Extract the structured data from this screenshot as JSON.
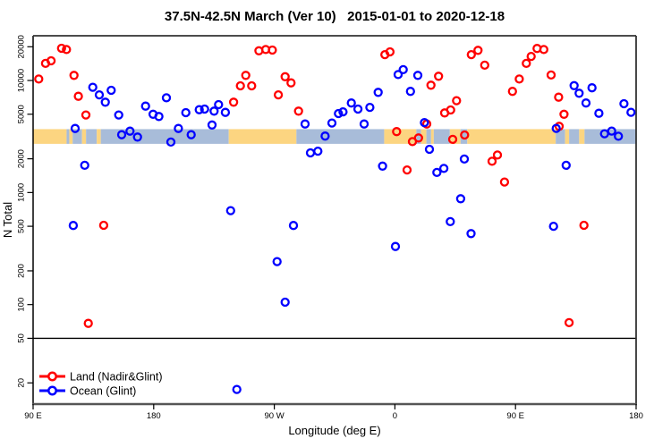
{
  "title": "37.5N-42.5N March (Ver 10)   2015-01-01 to 2020-12-18",
  "chart_data": {
    "type": "scatter",
    "title": "37.5N-42.5N March (Ver 10)   2015-01-01 to 2020-12-18",
    "xlabel": "Longitude (deg E)",
    "ylabel": "N Total",
    "x_axis": {
      "note": "continuous longitude axis starting at 90E wrapping eastward to 180",
      "domain": [
        90,
        540
      ],
      "ticks": [
        {
          "v": 90,
          "label": "90 E"
        },
        {
          "v": 180,
          "label": "180"
        },
        {
          "v": 270,
          "label": "90 W"
        },
        {
          "v": 360,
          "label": "0"
        },
        {
          "v": 450,
          "label": "90 E"
        },
        {
          "v": 540,
          "label": "180"
        }
      ]
    },
    "y_axis": {
      "scale": "log",
      "domain": [
        15,
        25000
      ],
      "ticks": [
        20000,
        10000,
        5000,
        2000,
        1000,
        500,
        200,
        100,
        50,
        20
      ]
    },
    "hline_value": 50,
    "surface_band": {
      "value_range": [
        2720,
        3680
      ],
      "land_color": "#FCD581",
      "ocean_color": "#A8BCD9",
      "segments": [
        {
          "from": 90,
          "to": 115,
          "type": "land"
        },
        {
          "from": 115,
          "to": 117,
          "type": "ocean"
        },
        {
          "from": 117,
          "to": 119.5,
          "type": "land"
        },
        {
          "from": 119.5,
          "to": 126.5,
          "type": "ocean"
        },
        {
          "from": 126.5,
          "to": 129.5,
          "type": "land"
        },
        {
          "from": 129.5,
          "to": 137.5,
          "type": "ocean"
        },
        {
          "from": 137.5,
          "to": 140.5,
          "type": "land"
        },
        {
          "from": 140.5,
          "to": 236,
          "type": "ocean"
        },
        {
          "from": 236,
          "to": 286.5,
          "type": "land"
        },
        {
          "from": 286.5,
          "to": 352,
          "type": "ocean"
        },
        {
          "from": 352,
          "to": 376,
          "type": "land"
        },
        {
          "from": 376,
          "to": 379.5,
          "type": "ocean"
        },
        {
          "from": 379.5,
          "to": 383.5,
          "type": "land"
        },
        {
          "from": 383.5,
          "to": 387,
          "type": "ocean"
        },
        {
          "from": 387,
          "to": 389,
          "type": "land"
        },
        {
          "from": 389,
          "to": 401,
          "type": "ocean"
        },
        {
          "from": 401,
          "to": 409,
          "type": "land"
        },
        {
          "from": 409,
          "to": 414,
          "type": "ocean"
        },
        {
          "from": 414,
          "to": 480,
          "type": "land"
        },
        {
          "from": 480,
          "to": 487,
          "type": "ocean"
        },
        {
          "from": 487,
          "to": 490,
          "type": "land"
        },
        {
          "from": 490,
          "to": 497.5,
          "type": "ocean"
        },
        {
          "from": 497.5,
          "to": 501.5,
          "type": "land"
        },
        {
          "from": 501.5,
          "to": 540,
          "type": "ocean"
        }
      ]
    },
    "series": [
      {
        "name": "Land (Nadir&Glint)",
        "color": "#FF0000",
        "points": [
          [
            111.2,
            19400
          ],
          [
            114.9,
            18900
          ],
          [
            103.4,
            15000
          ],
          [
            99.3,
            14200
          ],
          [
            94.2,
            10300
          ],
          [
            120.5,
            11100
          ],
          [
            123.8,
            7230
          ],
          [
            129.4,
            4920
          ],
          [
            239.6,
            6400
          ],
          [
            244.7,
            8960
          ],
          [
            248.7,
            11100
          ],
          [
            253.1,
            8960
          ],
          [
            258.5,
            18400
          ],
          [
            263.6,
            18900
          ],
          [
            268.5,
            18700
          ],
          [
            273.0,
            7450
          ],
          [
            278.1,
            10800
          ],
          [
            282.5,
            9520
          ],
          [
            288.1,
            5330
          ],
          [
            352.5,
            17000
          ],
          [
            356.3,
            18000
          ],
          [
            361.3,
            3500
          ],
          [
            369.1,
            1590
          ],
          [
            373.1,
            2850
          ],
          [
            377.6,
            3070
          ],
          [
            383.8,
            4090
          ],
          [
            386.9,
            9080
          ],
          [
            392.6,
            10900
          ],
          [
            397.1,
            5140
          ],
          [
            401.6,
            5460
          ],
          [
            403.1,
            2980
          ],
          [
            406.0,
            6600
          ],
          [
            412.0,
            3260
          ],
          [
            417.0,
            17000
          ],
          [
            422.0,
            18600
          ],
          [
            427.0,
            13700
          ],
          [
            432.5,
            1900
          ],
          [
            436.5,
            2160
          ],
          [
            441.8,
            1240
          ],
          [
            447.7,
            8000
          ],
          [
            452.8,
            10300
          ],
          [
            458.1,
            14200
          ],
          [
            461.7,
            16400
          ],
          [
            466.1,
            19300
          ],
          [
            471.1,
            18900
          ],
          [
            476.6,
            11200
          ],
          [
            482.2,
            7100
          ],
          [
            482.6,
            3900
          ],
          [
            486.2,
            5000
          ],
          [
            490.0,
            69
          ],
          [
            501.1,
            510
          ],
          [
            131.2,
            68
          ],
          [
            142.7,
            510
          ]
        ]
      },
      {
        "name": "Ocean (Glint)",
        "color": "#0000FF",
        "points": [
          [
            120.0,
            508
          ],
          [
            121.4,
            3730
          ],
          [
            128.5,
            1750
          ],
          [
            134.5,
            8700
          ],
          [
            139.4,
            7450
          ],
          [
            143.9,
            6400
          ],
          [
            148.3,
            8170
          ],
          [
            153.9,
            4920
          ],
          [
            156.1,
            3280
          ],
          [
            162.3,
            3530
          ],
          [
            167.9,
            3130
          ],
          [
            173.9,
            5900
          ],
          [
            179.5,
            5000
          ],
          [
            183.9,
            4770
          ],
          [
            189.5,
            7000
          ],
          [
            192.8,
            2820
          ],
          [
            198.4,
            3730
          ],
          [
            204.0,
            5160
          ],
          [
            208.0,
            3280
          ],
          [
            214.0,
            5490
          ],
          [
            218.0,
            5560
          ],
          [
            223.5,
            4010
          ],
          [
            225.1,
            5330
          ],
          [
            228.4,
            6090
          ],
          [
            233.5,
            5190
          ],
          [
            237.4,
            690
          ],
          [
            242.0,
            17.5
          ],
          [
            272.1,
            242
          ],
          [
            278.1,
            105
          ],
          [
            284.3,
            508
          ],
          [
            293.0,
            4090
          ],
          [
            297.0,
            2260
          ],
          [
            302.5,
            2340
          ],
          [
            307.9,
            3190
          ],
          [
            313.0,
            4170
          ],
          [
            317.9,
            5070
          ],
          [
            321.3,
            5250
          ],
          [
            327.5,
            6300
          ],
          [
            332.4,
            5560
          ],
          [
            337.0,
            4090
          ],
          [
            341.3,
            5760
          ],
          [
            347.5,
            7830
          ],
          [
            350.8,
            1720
          ],
          [
            360.4,
            330
          ],
          [
            362.4,
            11300
          ],
          [
            366.2,
            12500
          ],
          [
            371.6,
            8000
          ],
          [
            377.1,
            11100
          ],
          [
            382.0,
            4210
          ],
          [
            385.8,
            2430
          ],
          [
            391.3,
            1510
          ],
          [
            396.5,
            1640
          ],
          [
            401.3,
            550
          ],
          [
            409.1,
            880
          ],
          [
            411.8,
            1990
          ],
          [
            416.8,
            430
          ],
          [
            478.4,
            500
          ],
          [
            480.4,
            3740
          ],
          [
            487.8,
            1750
          ],
          [
            493.7,
            9000
          ],
          [
            497.5,
            7700
          ],
          [
            502.6,
            6300
          ],
          [
            507.1,
            8600
          ],
          [
            512.2,
            5100
          ],
          [
            516.4,
            3350
          ],
          [
            521.8,
            3540
          ],
          [
            526.8,
            3180
          ],
          [
            530.9,
            6200
          ],
          [
            536.2,
            5200
          ]
        ]
      }
    ],
    "legend": {
      "position": "bottom-left",
      "items": [
        "Land (Nadir&Glint)",
        "Ocean (Glint)"
      ]
    }
  }
}
